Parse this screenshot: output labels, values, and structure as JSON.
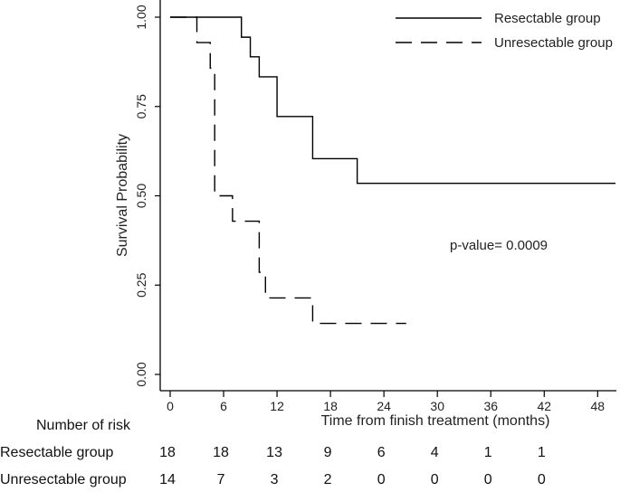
{
  "chart_data": {
    "type": "line",
    "subtype": "kaplan-meier",
    "xlabel": "Time from finish treatment (months)",
    "ylabel": "Survival Probability",
    "xlim": [
      0,
      50
    ],
    "ylim": [
      0,
      1
    ],
    "xticks": [
      0,
      6,
      12,
      18,
      24,
      30,
      36,
      42,
      48
    ],
    "yticks": [
      0,
      0.25,
      0.5,
      0.75,
      1.0
    ],
    "ytick_labels": [
      "0.00",
      "0.25",
      "0.50",
      "0.75",
      "1.00"
    ],
    "legend_position": "top-right",
    "annotation": "p-value= 0.0009",
    "series": [
      {
        "name": "Resectable group",
        "style": "solid",
        "steps": [
          [
            0,
            1.0
          ],
          [
            8,
            0.944
          ],
          [
            9,
            0.889
          ],
          [
            10,
            0.833
          ],
          [
            12,
            0.722
          ],
          [
            16,
            0.604
          ],
          [
            21,
            0.535
          ]
        ],
        "end": 50
      },
      {
        "name": "Unresectable group",
        "style": "dashed",
        "steps": [
          [
            0,
            1.0
          ],
          [
            3,
            0.929
          ],
          [
            4.5,
            0.857
          ],
          [
            5,
            0.5
          ],
          [
            7,
            0.429
          ],
          [
            10,
            0.286
          ],
          [
            10.7,
            0.214
          ],
          [
            16,
            0.143
          ]
        ],
        "end": 26.5
      }
    ],
    "risk_table": {
      "title": "Number of risk",
      "rows": [
        {
          "label": "Resectable group",
          "values": [
            "18",
            "18",
            "13",
            "9",
            "6",
            "4",
            "1",
            "1"
          ]
        },
        {
          "label": "Unresectable group",
          "values": [
            "14",
            "7",
            "3",
            "2",
            "0",
            "0",
            "0",
            "0"
          ]
        }
      ]
    }
  }
}
